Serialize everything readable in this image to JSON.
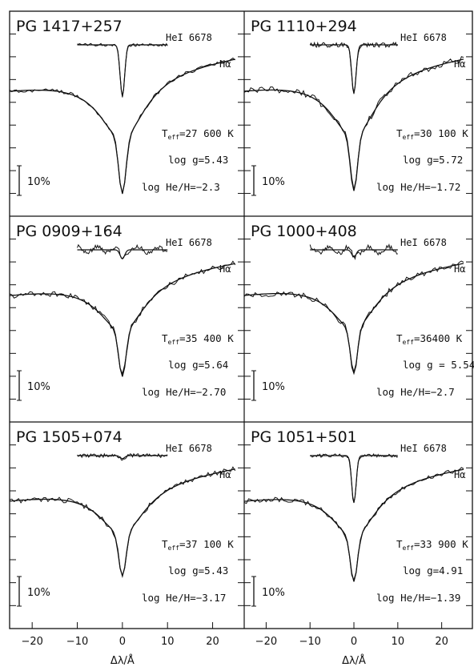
{
  "chart_data": {
    "type": "line",
    "xlabel": "Δλ/Å",
    "xlim": [
      -25,
      27
    ],
    "xticks": [
      -20,
      -10,
      0,
      10,
      20
    ],
    "scale_bar_label": "10%",
    "panels": [
      {
        "title": "PG 1417+257",
        "line1": "HeI 6678",
        "line2": "Hα",
        "teff": "27 600 K",
        "logg": "log g=5.43",
        "loghe": "log He/H=−2.3",
        "he_depth": 0.85,
        "ha_depth": 0.92,
        "noise": 0.6
      },
      {
        "title": "PG 1110+294",
        "line1": "HeI 6678",
        "line2": "Hα",
        "teff": "30 100 K",
        "logg": "log g=5.72",
        "loghe": "log He/H=−1.72",
        "he_depth": 0.8,
        "ha_depth": 0.9,
        "noise": 1.0
      },
      {
        "title": "PG 0909+164",
        "line1": "HeI 6678",
        "line2": "Hα",
        "teff": "35 400 K",
        "logg": "log g=5.64",
        "loghe": "log He/H=−2.70",
        "he_depth": 0.15,
        "ha_depth": 0.75,
        "noise": 0.9
      },
      {
        "title": "PG 1000+408",
        "line1": "HeI 6678",
        "line2": "Hα",
        "teff": "36400 K",
        "logg": "log g = 5.54",
        "loghe": "log He/H=−2.7",
        "he_depth": 0.12,
        "ha_depth": 0.72,
        "noise": 0.9
      },
      {
        "title": "PG 1505+074",
        "line1": "HeI 6678",
        "line2": "Hα",
        "teff": "37 100 K",
        "logg": "log g=5.43",
        "loghe": "log He/H=−3.17",
        "he_depth": 0.05,
        "ha_depth": 0.7,
        "noise": 0.8
      },
      {
        "title": "PG 1051+501",
        "line1": "HeI 6678",
        "line2": "Hα",
        "teff": "33 900 K",
        "logg": "log g=4.91",
        "loghe": "log He/H=−1.39",
        "he_depth": 0.78,
        "ha_depth": 0.74,
        "noise": 0.7
      }
    ]
  }
}
